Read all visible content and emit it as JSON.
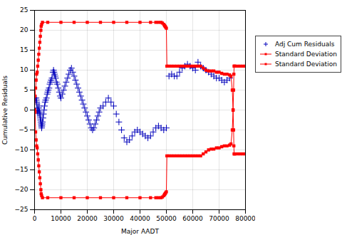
{
  "chart_data": {
    "type": "line",
    "xlabel": "Major AADT",
    "ylabel": "Cumulative Residuals",
    "xlim": [
      0,
      80000
    ],
    "ylim": [
      -25,
      25
    ],
    "xticks": [
      0,
      10000,
      20000,
      30000,
      40000,
      50000,
      60000,
      70000,
      80000
    ],
    "yticks": [
      -25,
      -20,
      -15,
      -10,
      -5,
      0,
      5,
      10,
      15,
      20,
      25
    ],
    "grid": true,
    "legend": "right",
    "series": [
      {
        "name": "Adj Cum Residuals",
        "type": "scatter",
        "color": "#0000bb",
        "marker": "plus",
        "x": [
          200,
          400,
          600,
          700,
          800,
          900,
          1000,
          1100,
          1200,
          1300,
          1500,
          1600,
          1700,
          1900,
          2000,
          2100,
          2200,
          2300,
          2400,
          2500,
          2600,
          2700,
          2800,
          2900,
          3000,
          3200,
          3400,
          3600,
          3800,
          4000,
          4200,
          4500,
          4800,
          5000,
          5200,
          5500,
          5800,
          6000,
          6300,
          6600,
          7000,
          7200,
          7400,
          7600,
          7800,
          8000,
          8300,
          8600,
          9000,
          9400,
          9700,
          10000,
          10500,
          11000,
          11500,
          12000,
          12500,
          13000,
          13500,
          14000,
          14500,
          15000,
          15500,
          16000,
          16500,
          17000,
          17500,
          18000,
          18500,
          19000,
          19500,
          20000,
          20500,
          21000,
          21500,
          22000,
          22500,
          23000,
          23500,
          24000,
          24500,
          25000,
          26000,
          27000,
          28000,
          29000,
          30000,
          31000,
          32000,
          33000,
          34000,
          35000,
          36000,
          37000,
          38000,
          39000,
          40000,
          41000,
          42000,
          43000,
          44000,
          45000,
          46000,
          47000,
          48000,
          49000,
          50000,
          51000,
          52000,
          53000,
          54000,
          55000,
          56000,
          57000,
          58000,
          59000,
          60000,
          61000,
          62000,
          63000,
          64000,
          65000,
          66000,
          67000,
          68000,
          69000,
          70000,
          71000,
          72000,
          73000,
          74000
        ],
        "values": [
          3.0,
          2.5,
          3.0,
          2.5,
          2.0,
          1.5,
          0.5,
          0.0,
          -0.3,
          -0.8,
          0.0,
          0.5,
          1.0,
          -0.5,
          -1.0,
          -1.5,
          -2.0,
          -2.5,
          -3.0,
          -3.5,
          -4.0,
          -4.5,
          -4.0,
          -3.5,
          -3.0,
          -2.0,
          -1.0,
          0.0,
          1.0,
          2.0,
          2.5,
          3.0,
          4.0,
          4.5,
          5.0,
          5.5,
          6.5,
          7.0,
          7.5,
          8.0,
          9.5,
          10.0,
          9.5,
          9.0,
          8.5,
          8.0,
          7.0,
          6.5,
          5.5,
          4.5,
          3.5,
          3.0,
          4.0,
          5.0,
          6.0,
          7.0,
          8.0,
          9.0,
          10.0,
          10.5,
          9.5,
          8.5,
          7.5,
          6.5,
          5.5,
          4.5,
          3.5,
          2.5,
          1.5,
          0.5,
          -0.5,
          -1.5,
          -2.5,
          -3.5,
          -4.5,
          -5.0,
          -4.5,
          -3.5,
          -2.5,
          -1.5,
          -0.5,
          0.5,
          1.0,
          2.0,
          3.0,
          2.0,
          1.0,
          -1.0,
          -3.0,
          -5.0,
          -7.0,
          -8.0,
          -7.5,
          -6.5,
          -5.5,
          -5.0,
          -5.5,
          -6.0,
          -6.5,
          -7.0,
          -6.5,
          -5.5,
          -4.5,
          -4.0,
          -4.5,
          -5.0,
          -4.5,
          8.5,
          9.0,
          8.5,
          8.5,
          9.5,
          10.5,
          11.0,
          11.5,
          11.0,
          10.5,
          10.0,
          12.0,
          11.0,
          10.5,
          10.0,
          9.5,
          9.0,
          8.5,
          8.0,
          8.0,
          7.5,
          7.0,
          7.5,
          8.0
        ]
      },
      {
        "name": "Standard Deviation",
        "type": "line",
        "color": "#ff0000",
        "marker": "square",
        "line_style": "solid",
        "x": [
          0,
          200,
          400,
          600,
          800,
          1000,
          1200,
          1400,
          1600,
          1800,
          2000,
          2200,
          2400,
          2500,
          2700,
          3000,
          5000,
          10000,
          15000,
          20000,
          25000,
          30000,
          35000,
          40000,
          44000,
          46000,
          47000,
          48000,
          48500,
          49000,
          49300,
          49500,
          49700,
          50000,
          50200,
          51000,
          52000,
          53000,
          54000,
          55000,
          56000,
          57000,
          58000,
          59000,
          60000,
          61000,
          62000,
          63000,
          64000,
          65000,
          66000,
          67000,
          68000,
          69000,
          70000,
          71000,
          72000,
          73000,
          74000,
          74500,
          75000,
          75300,
          75500,
          75600,
          75700,
          75800,
          76000,
          77000,
          78000,
          79000,
          80000
        ],
        "values": [
          0.0,
          3.5,
          5.5,
          7.5,
          9.0,
          9.5,
          11.0,
          12.5,
          14.0,
          15.5,
          17.0,
          18.5,
          20.0,
          21.0,
          21.5,
          22.0,
          22.0,
          22.0,
          22.0,
          22.0,
          22.0,
          22.0,
          22.0,
          22.0,
          22.0,
          22.0,
          22.0,
          22.0,
          21.8,
          21.5,
          21.2,
          21.0,
          20.8,
          20.5,
          11.0,
          11.0,
          11.0,
          11.0,
          11.0,
          11.0,
          11.0,
          11.0,
          11.0,
          11.0,
          11.0,
          11.0,
          11.0,
          11.0,
          10.5,
          10.0,
          9.8,
          9.8,
          9.8,
          9.5,
          9.5,
          9.2,
          9.0,
          9.0,
          8.8,
          8.5,
          5.0,
          0.0,
          -5.0,
          -9.0,
          -11.0,
          -11.0,
          -11.0,
          -11.0,
          -11.0,
          -11.0,
          -11.0
        ]
      },
      {
        "name": "Standard Deviation",
        "type": "line",
        "color": "#ff0000",
        "marker": "square",
        "line_style": "solid",
        "x": [
          0,
          200,
          400,
          600,
          800,
          1000,
          1200,
          1400,
          1600,
          1800,
          2000,
          2200,
          2400,
          2500,
          2700,
          3000,
          5000,
          10000,
          15000,
          20000,
          25000,
          30000,
          35000,
          40000,
          44000,
          46000,
          47000,
          48000,
          48500,
          49000,
          49300,
          49500,
          49700,
          50000,
          50200,
          51000,
          52000,
          53000,
          54000,
          55000,
          56000,
          57000,
          58000,
          59000,
          60000,
          61000,
          62000,
          63000,
          64000,
          65000,
          66000,
          67000,
          68000,
          69000,
          70000,
          71000,
          72000,
          73000,
          74000,
          74500,
          75000,
          75300,
          75500,
          75600,
          75700,
          75800,
          76000,
          77000,
          78000,
          79000,
          80000
        ],
        "values": [
          0.0,
          -0.5,
          -5.5,
          -7.5,
          -9.0,
          -9.5,
          -11.0,
          -12.5,
          -14.0,
          -15.5,
          -17.0,
          -18.5,
          -20.0,
          -21.0,
          -21.5,
          -22.0,
          -22.0,
          -22.0,
          -22.0,
          -22.0,
          -22.0,
          -22.0,
          -22.0,
          -22.0,
          -22.0,
          -22.0,
          -22.0,
          -22.0,
          -21.8,
          -21.5,
          -21.2,
          -21.0,
          -20.8,
          -20.5,
          -11.5,
          -11.5,
          -11.5,
          -11.5,
          -11.5,
          -11.5,
          -11.5,
          -11.5,
          -11.5,
          -11.5,
          -11.5,
          -11.5,
          -11.5,
          -11.5,
          -11.0,
          -10.5,
          -10.0,
          -9.8,
          -9.8,
          -9.5,
          -9.5,
          -9.2,
          -9.0,
          -9.0,
          -8.8,
          -8.5,
          -5.0,
          0.0,
          5.0,
          9.0,
          11.0,
          11.0,
          11.0,
          11.0,
          11.0,
          11.0,
          11.0
        ]
      }
    ]
  }
}
